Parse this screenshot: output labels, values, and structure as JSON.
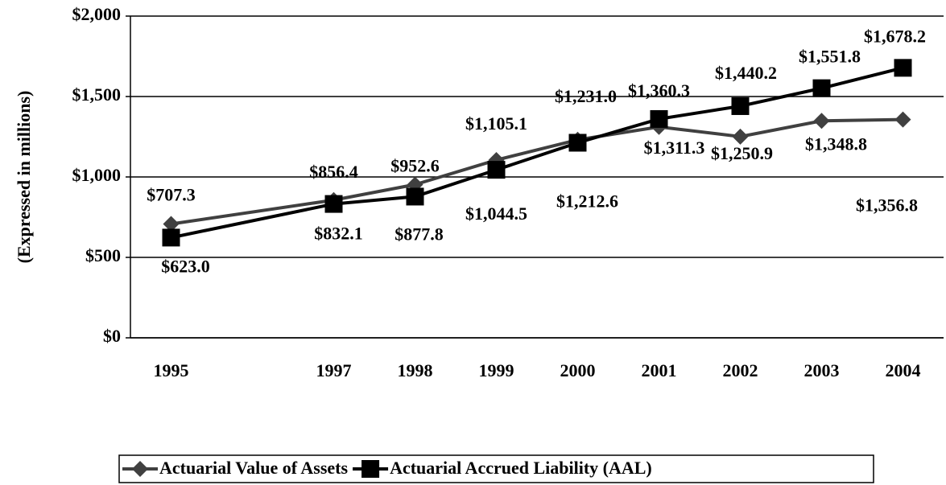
{
  "chart_data": {
    "type": "line",
    "y_axis_label": "(Expressed in millions)",
    "x": [
      1995,
      1997,
      1998,
      1999,
      2000,
      2001,
      2002,
      2003,
      2004
    ],
    "xlim": [
      1994.5,
      2004.5
    ],
    "series": [
      {
        "name": "Actuarial Value of Assets",
        "color": "#404040",
        "marker": "diamond",
        "values": [
          707.3,
          856.4,
          952.6,
          1105.1,
          1231.0,
          1311.3,
          1250.9,
          1348.8,
          1356.8
        ],
        "value_labels": [
          "$707.3",
          "$856.4",
          "$952.6",
          "$1,105.1",
          "$1,231.0",
          "$1,311.3",
          "$1,250.9",
          "$1,348.8",
          "$1,356.8"
        ]
      },
      {
        "name": "Actuarial Accrued Liability (AAL)",
        "color": "#000000",
        "marker": "square",
        "values": [
          623.0,
          832.1,
          877.8,
          1044.5,
          1212.6,
          1360.3,
          1440.2,
          1551.8,
          1678.2
        ],
        "value_labels": [
          "$623.0",
          "$832.1",
          "$877.8",
          "$1,044.5",
          "$1,212.6",
          "$1,360.3",
          "$1,440.2",
          "$1,551.8",
          "$1,678.2"
        ]
      }
    ],
    "ylim": [
      0,
      2000
    ],
    "yticks": [
      {
        "value": 0,
        "label": "$0"
      },
      {
        "value": 500,
        "label": "$500"
      },
      {
        "value": 1000,
        "label": "$1,000"
      },
      {
        "value": 1500,
        "label": "$1,500"
      },
      {
        "value": 2000,
        "label": "$2,000"
      }
    ],
    "grid": true,
    "legend": "bottom"
  }
}
